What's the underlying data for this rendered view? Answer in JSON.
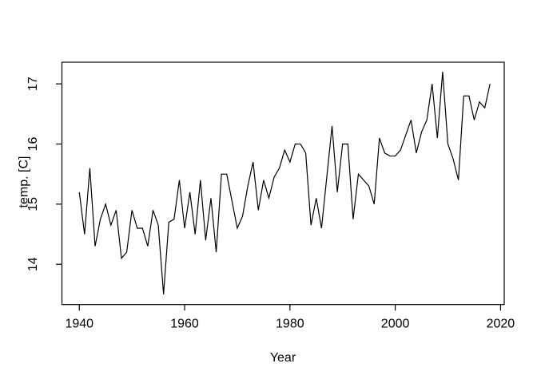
{
  "figure": {
    "background_color": "#ffffff",
    "line_color": "#000000",
    "axis_color": "#000000",
    "text_color": "#000000"
  },
  "chart_data": {
    "type": "line",
    "title": "",
    "xlabel": "Year",
    "ylabel": "temp. [C]",
    "xlim": [
      1936.7,
      2020.7
    ],
    "ylim": [
      13.33,
      17.36
    ],
    "x_ticks": [
      1940,
      1960,
      1980,
      2000,
      2020
    ],
    "y_ticks": [
      14,
      15,
      16,
      17
    ],
    "grid": false,
    "legend": false,
    "x": [
      1940,
      1941,
      1942,
      1943,
      1944,
      1945,
      1946,
      1947,
      1948,
      1949,
      1950,
      1951,
      1952,
      1953,
      1954,
      1955,
      1956,
      1957,
      1958,
      1959,
      1960,
      1961,
      1962,
      1963,
      1964,
      1965,
      1966,
      1967,
      1968,
      1969,
      1970,
      1971,
      1972,
      1973,
      1974,
      1975,
      1976,
      1977,
      1978,
      1979,
      1980,
      1981,
      1982,
      1983,
      1984,
      1985,
      1986,
      1987,
      1988,
      1989,
      1990,
      1991,
      1992,
      1993,
      1994,
      1995,
      1996,
      1997,
      1998,
      1999,
      2000,
      2001,
      2002,
      2003,
      2004,
      2005,
      2006,
      2007,
      2008,
      2009,
      2010,
      2011,
      2012,
      2013,
      2014,
      2015,
      2016,
      2017,
      2018
    ],
    "values": [
      15.2,
      14.5,
      15.6,
      14.3,
      14.75,
      15.0,
      14.65,
      14.9,
      14.1,
      14.2,
      14.9,
      14.6,
      14.6,
      14.3,
      14.9,
      14.65,
      13.5,
      14.7,
      14.75,
      15.4,
      14.6,
      15.2,
      14.5,
      15.4,
      14.4,
      15.1,
      14.2,
      15.5,
      15.5,
      15.05,
      14.6,
      14.8,
      15.3,
      15.7,
      14.9,
      15.4,
      15.1,
      15.45,
      15.6,
      15.9,
      15.7,
      16.0,
      16.0,
      15.85,
      14.65,
      15.1,
      14.6,
      15.45,
      16.3,
      15.2,
      16.0,
      16.0,
      14.75,
      15.5,
      15.4,
      15.3,
      15.0,
      16.1,
      15.85,
      15.8,
      15.8,
      15.9,
      16.15,
      16.4,
      15.85,
      16.2,
      16.4,
      17.0,
      16.1,
      17.2,
      16.0,
      15.75,
      15.4,
      16.8,
      16.8,
      16.4,
      16.7,
      16.6,
      17.0
    ]
  }
}
